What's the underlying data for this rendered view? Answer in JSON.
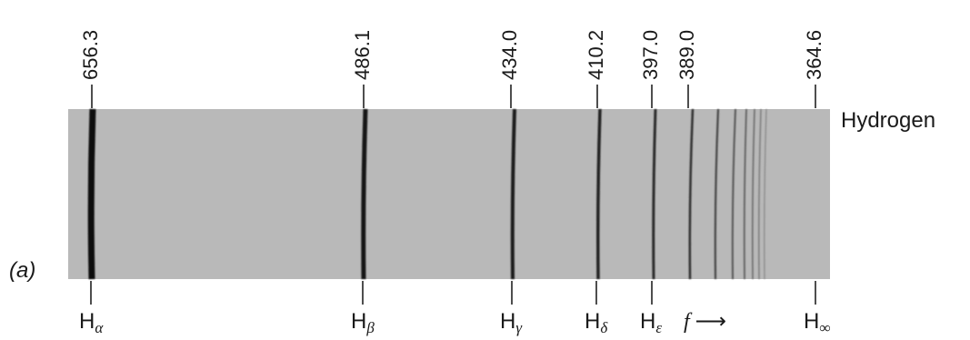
{
  "figure": {
    "panel_label": "(a)",
    "element": "Hydrogen",
    "wavelengths": [
      "656.3",
      "486.1",
      "434.0",
      "410.2",
      "397.0",
      "389.0",
      "364.6"
    ],
    "lines": [
      {
        "main": "H",
        "sub": "α"
      },
      {
        "main": "H",
        "sub": "β"
      },
      {
        "main": "H",
        "sub": "γ"
      },
      {
        "main": "H",
        "sub": "δ"
      },
      {
        "main": "H",
        "sub": "ε"
      },
      {
        "main": "H",
        "sub": "∞"
      }
    ],
    "frequency_symbol": "f",
    "arrow": "⟶"
  }
}
